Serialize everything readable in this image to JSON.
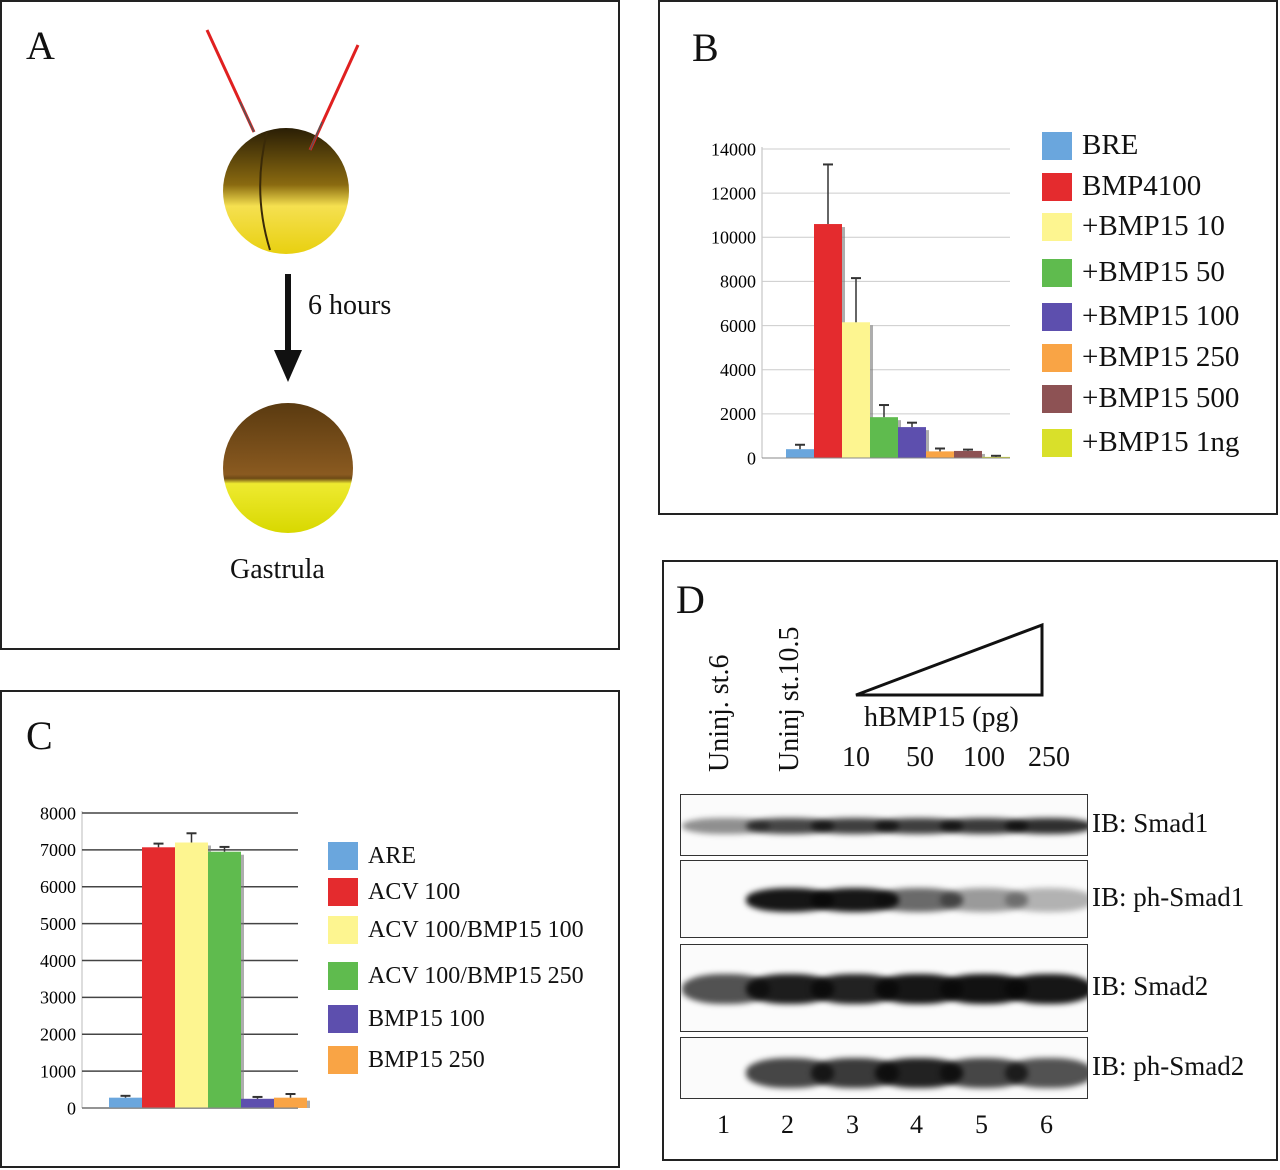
{
  "panel_a": {
    "label": "A",
    "arrow_text": "6 hours",
    "caption": "Gastrula"
  },
  "panel_d": {
    "label": "D",
    "lane_headers": [
      "Uninj. st.6",
      "Uninj st.10.5"
    ],
    "dose_label": "hBMP15 (pg)",
    "doses": [
      "10",
      "50",
      "100",
      "250"
    ],
    "lane_numbers": [
      "1",
      "2",
      "3",
      "4",
      "5",
      "6"
    ],
    "blots": [
      {
        "label": "IB: Smad1",
        "intensity": [
          0.45,
          0.75,
          0.78,
          0.78,
          0.8,
          0.85
        ]
      },
      {
        "label": "IB: ph-Smad1",
        "intensity": [
          0,
          0.95,
          0.95,
          0.6,
          0.4,
          0.3
        ]
      },
      {
        "label": "IB: Smad2",
        "intensity": [
          0.7,
          0.92,
          0.9,
          0.95,
          0.97,
          0.95
        ]
      },
      {
        "label": "IB: ph-Smad2",
        "intensity": [
          0,
          0.75,
          0.8,
          0.9,
          0.75,
          0.7
        ]
      }
    ]
  },
  "chart_data": [
    {
      "type": "bar",
      "panel": "B",
      "ylim": [
        0,
        14000
      ],
      "yticks": [
        "0",
        "2000",
        "4000",
        "6000",
        "8000",
        "10000",
        "12000",
        "14000"
      ],
      "grid": true,
      "legend": "right",
      "series": [
        {
          "name": "BRE",
          "value": 400,
          "err_top": 600,
          "color": "#6aa6dd"
        },
        {
          "name": "BMP4100",
          "value": 10600,
          "err_top": 13300,
          "color": "#e42b2e"
        },
        {
          "name": "+BMP15 10",
          "value": 6150,
          "err_top": 8150,
          "color": "#fdf590"
        },
        {
          "name": "+BMP15 50",
          "value": 1850,
          "err_top": 2400,
          "color": "#5fbb4e"
        },
        {
          "name": "+BMP15 100",
          "value": 1400,
          "err_top": 1600,
          "color": "#5d4fae"
        },
        {
          "name": "+BMP15 250",
          "value": 300,
          "err_top": 430,
          "color": "#f9a445"
        },
        {
          "name": "+BMP15 500",
          "value": 320,
          "err_top": 380,
          "color": "#8d5254"
        },
        {
          "name": "+BMP15 1ng",
          "value": 50,
          "err_top": 100,
          "color": "#d9e02a"
        }
      ]
    },
    {
      "type": "bar",
      "panel": "C",
      "ylim": [
        0,
        8000
      ],
      "yticks": [
        "0",
        "1000",
        "2000",
        "3000",
        "4000",
        "5000",
        "6000",
        "7000",
        "8000"
      ],
      "grid": true,
      "legend": "right",
      "series": [
        {
          "name": "ARE",
          "value": 280,
          "err_top": 330,
          "color": "#6aa6dd"
        },
        {
          "name": "ACV 100",
          "value": 7070,
          "err_top": 7170,
          "color": "#e42b2e"
        },
        {
          "name": "ACV 100/BMP15 100",
          "value": 7200,
          "err_top": 7450,
          "color": "#fdf590"
        },
        {
          "name": "ACV 100/BMP15 250",
          "value": 6950,
          "err_top": 7080,
          "color": "#5fbb4e"
        },
        {
          "name": "BMP15 100",
          "value": 250,
          "err_top": 300,
          "color": "#5d4fae"
        },
        {
          "name": "BMP15 250",
          "value": 280,
          "err_top": 380,
          "color": "#f9a445"
        }
      ]
    }
  ]
}
